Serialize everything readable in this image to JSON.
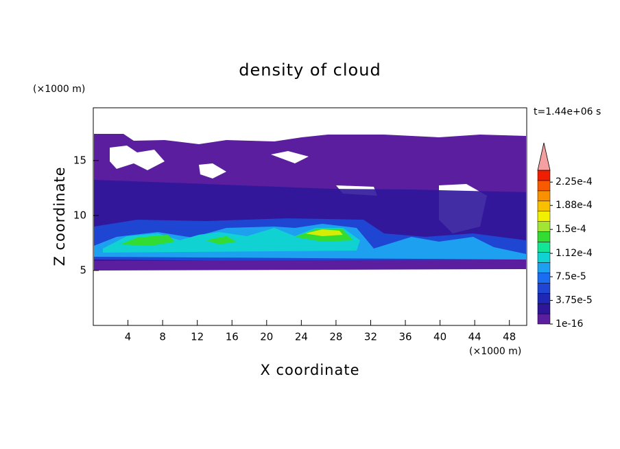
{
  "chart_data": {
    "type": "contour",
    "title": "density of cloud",
    "x_label": "X coordinate",
    "y_label": "Z coordinate",
    "x_unit": "(×1000 m)",
    "y_unit": "(×1000 m)",
    "time_label": "t=1.44e+06 s",
    "xlim": [
      0,
      50
    ],
    "ylim": [
      0,
      19.8
    ],
    "xticks": [
      4,
      8,
      12,
      16,
      20,
      24,
      28,
      32,
      36,
      40,
      44,
      48
    ],
    "yticks": [
      5,
      10,
      15
    ],
    "clim": [
      1e-16,
      0.00024375
    ],
    "cticks": [
      {
        "value": 1e-16,
        "label": "1e-16"
      },
      {
        "value": 3.75e-05,
        "label": "3.75e-5"
      },
      {
        "value": 7.5e-05,
        "label": "7.5e-5"
      },
      {
        "value": 0.000112,
        "label": "1.12e-4"
      },
      {
        "value": 0.00015,
        "label": "1.5e-4"
      },
      {
        "value": 0.000188,
        "label": "1.88e-4"
      },
      {
        "value": 0.000225,
        "label": "2.25e-4"
      }
    ],
    "colors": [
      "#5a1e9e",
      "#2e169a",
      "#1e28b4",
      "#1e46d2",
      "#1a6cf0",
      "#1ea0f0",
      "#10d2d2",
      "#12e696",
      "#32dc32",
      "#a0e632",
      "#f0f000",
      "#f8c000",
      "#f89000",
      "#f85a00",
      "#f01e00"
    ],
    "extend_color": "#f4a0a0"
  }
}
